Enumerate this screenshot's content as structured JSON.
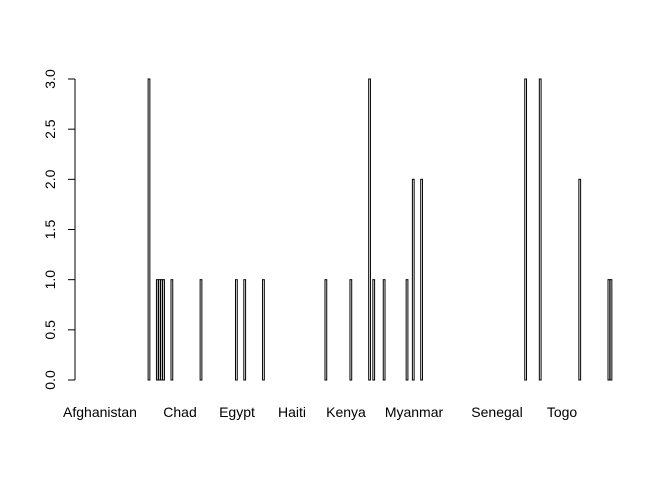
{
  "chart_data": {
    "type": "bar",
    "title": "",
    "xlabel": "",
    "ylabel": "",
    "ylim": [
      0,
      3
    ],
    "y_ticks": [
      0,
      0.5,
      1,
      1.5,
      2,
      2.5,
      3
    ],
    "y_tick_labels": [
      "0.0",
      "0.5",
      "1.0",
      "1.5",
      "2.0",
      "2.5",
      "3.0"
    ],
    "grid": false,
    "legend": "none",
    "x_tick_labels": [
      "Afghanistan",
      "Chad",
      "Egypt",
      "Haiti",
      "Kenya",
      "Myanmar",
      "Senegal",
      "Togo"
    ],
    "values": [
      0,
      0,
      0,
      0,
      0,
      0,
      0,
      0,
      0,
      0,
      0,
      0,
      0,
      0,
      0,
      0,
      0,
      0,
      0,
      0,
      0,
      0,
      0,
      0,
      3,
      0,
      0,
      0,
      1,
      1,
      1,
      1,
      0,
      0,
      0,
      1,
      0,
      0,
      0,
      0,
      0,
      0,
      0,
      0,
      0,
      0,
      0,
      0,
      0,
      1,
      0,
      0,
      0,
      0,
      0,
      0,
      0,
      0,
      0,
      0,
      0,
      0,
      0,
      0,
      0,
      0,
      1,
      0,
      0,
      0,
      1,
      0,
      0,
      0,
      0,
      0,
      0,
      0,
      0,
      1,
      0,
      0,
      0,
      0,
      0,
      0,
      0,
      0,
      0,
      0,
      0,
      0,
      0,
      0,
      0,
      0,
      0,
      0,
      0,
      0,
      0,
      0,
      0,
      0,
      0,
      0,
      0,
      0,
      0,
      1,
      0,
      0,
      0,
      0,
      0,
      0,
      0,
      0,
      0,
      0,
      0,
      1,
      0,
      0,
      0,
      0,
      0,
      0,
      0,
      0,
      3,
      0,
      1,
      0,
      0,
      0,
      0,
      1,
      0,
      0,
      0,
      0,
      0,
      0,
      0,
      0,
      0,
      0,
      1,
      0,
      0,
      2,
      0,
      0,
      0,
      2,
      0,
      0,
      0,
      0,
      0,
      0,
      0,
      0,
      0,
      0,
      0,
      0,
      0,
      0,
      0,
      0,
      0,
      0,
      0,
      0,
      0,
      0,
      0,
      0,
      0,
      0,
      0,
      0,
      0,
      0,
      0,
      0,
      0,
      0,
      0,
      0,
      0,
      0,
      0,
      0,
      0,
      0,
      0,
      0,
      0,
      0,
      0,
      0,
      0,
      3,
      0,
      0,
      0,
      0,
      0,
      0,
      3,
      0,
      0,
      0,
      0,
      0,
      0,
      0,
      0,
      0,
      0,
      0,
      0,
      0,
      0,
      0,
      0,
      0,
      0,
      2,
      0,
      0,
      0,
      0,
      0,
      0,
      0,
      0,
      0,
      0,
      0,
      0,
      0,
      1,
      1
    ]
  }
}
